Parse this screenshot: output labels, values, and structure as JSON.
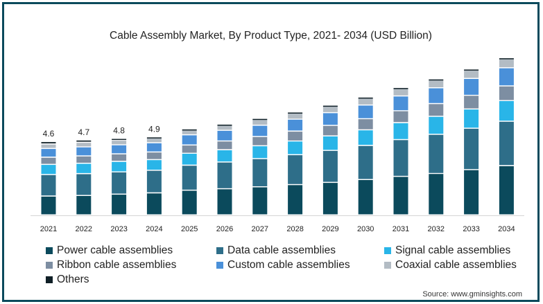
{
  "chart_data": {
    "type": "bar",
    "stacked": true,
    "title": "Cable Assembly Market, By Product Type, 2021- 2034 (USD Billion)",
    "categories": [
      "2021",
      "2022",
      "2023",
      "2024",
      "2025",
      "2026",
      "2027",
      "2028",
      "2029",
      "2030",
      "2031",
      "2032",
      "2033",
      "2034"
    ],
    "totals": [
      4.6,
      4.7,
      4.8,
      4.9,
      5.4,
      5.7,
      6.0,
      6.4,
      6.8,
      7.3,
      7.9,
      8.4,
      9.0,
      9.7
    ],
    "total_labels": [
      "4.6",
      "4.7",
      "4.8",
      "4.9",
      "",
      "",
      "",
      "",
      "",
      "",
      "",
      "",
      "",
      ""
    ],
    "ylim": [
      0,
      9.7
    ],
    "series": [
      {
        "name": "Power cable assemblies",
        "color": "#0b4a5c",
        "values": [
          1.18,
          1.22,
          1.3,
          1.38,
          1.55,
          1.64,
          1.76,
          1.9,
          2.04,
          2.22,
          2.42,
          2.6,
          2.84,
          3.09
        ]
      },
      {
        "name": "Data cable assemblies",
        "color": "#2e6e89",
        "values": [
          1.35,
          1.37,
          1.4,
          1.42,
          1.57,
          1.68,
          1.77,
          1.88,
          2.01,
          2.14,
          2.31,
          2.46,
          2.6,
          2.79
        ]
      },
      {
        "name": "Signal cable assemblies",
        "color": "#29b5e8",
        "values": [
          0.64,
          0.65,
          0.66,
          0.67,
          0.75,
          0.77,
          0.81,
          0.86,
          0.91,
          0.98,
          1.06,
          1.13,
          1.21,
          1.3
        ]
      },
      {
        "name": "Ribbon cable assemblies",
        "color": "#7d8ea2",
        "values": [
          0.45,
          0.46,
          0.47,
          0.48,
          0.52,
          0.55,
          0.58,
          0.62,
          0.66,
          0.7,
          0.75,
          0.8,
          0.86,
          0.92
        ]
      },
      {
        "name": "Custom cable assemblies",
        "color": "#4a90d9",
        "values": [
          0.55,
          0.57,
          0.57,
          0.58,
          0.64,
          0.67,
          0.71,
          0.75,
          0.8,
          0.86,
          0.93,
          0.99,
          1.06,
          1.14
        ]
      },
      {
        "name": "Coaxial cable assemblies",
        "color": "#b3bcc4",
        "values": [
          0.28,
          0.29,
          0.29,
          0.3,
          0.33,
          0.35,
          0.37,
          0.39,
          0.41,
          0.44,
          0.47,
          0.5,
          0.53,
          0.57
        ]
      },
      {
        "name": "Others",
        "color": "#0f1f26",
        "values": [
          0.15,
          0.14,
          0.11,
          0.07,
          0.04,
          0.04,
          0.0,
          0.0,
          -0.03,
          -0.04,
          -0.04,
          -0.08,
          -0.1,
          -0.11
        ]
      }
    ],
    "legend_position": "bottom",
    "grid": false,
    "source": "Source: www.gminsights.com"
  }
}
